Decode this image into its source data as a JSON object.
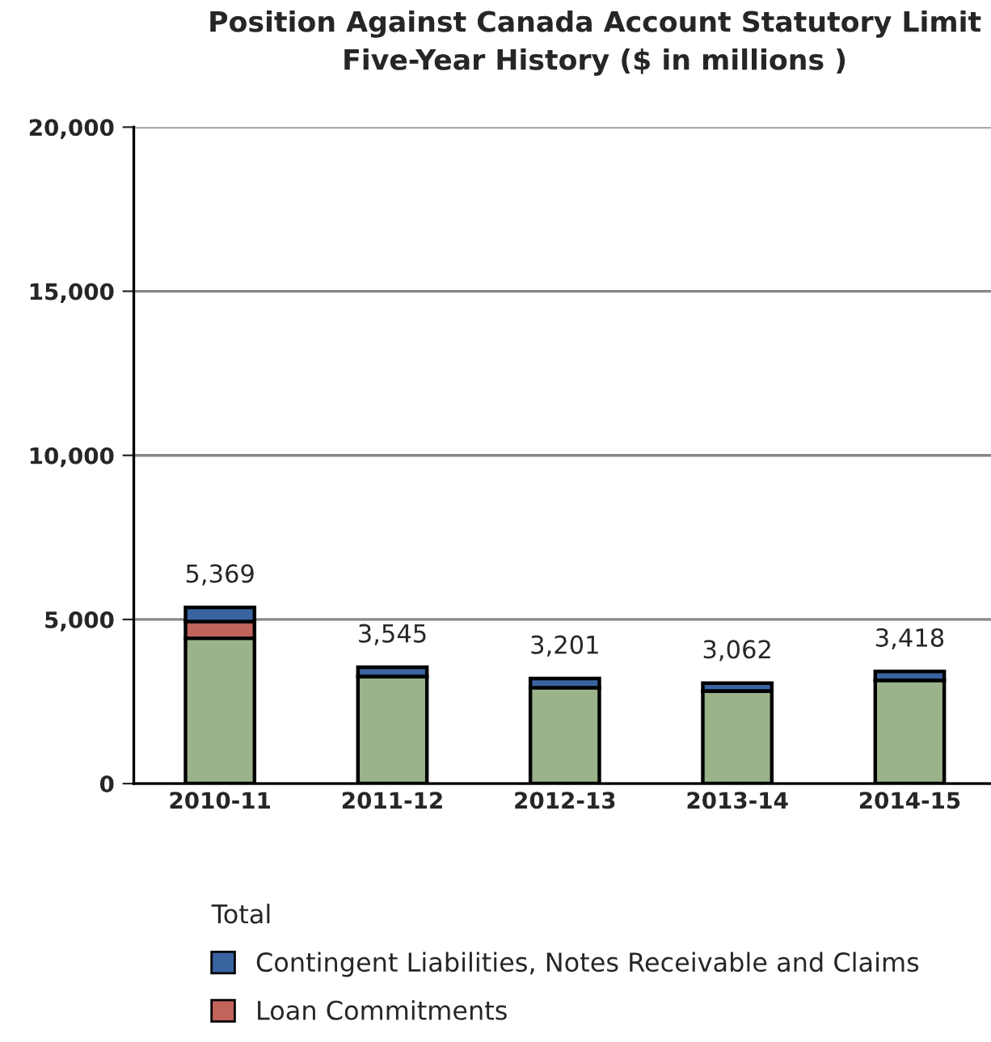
{
  "chart_data": {
    "type": "bar",
    "title": "Position Against Canada Account Statutory Limit\nFive-Year History ($ in millions )",
    "categories": [
      "2010-11",
      "2011-12",
      "2012-13",
      "2013-14",
      "2014-15"
    ],
    "stacked": true,
    "series": [
      {
        "color": "#9bb38b",
        "values": [
          4429,
          3265,
          2921,
          2822,
          3148
        ]
      },
      {
        "name": "Loan Commitments",
        "color": "#c0645c",
        "values": [
          510,
          null,
          null,
          null,
          null
        ]
      },
      {
        "name": "Contingent Liabilities, Notes Receivable and Claims",
        "color": "#3a64a0",
        "values": [
          430,
          280,
          280,
          240,
          270
        ]
      }
    ],
    "totals": [
      "5,369",
      "3,545",
      "3,201",
      "3,062",
      "3,418"
    ],
    "ylim": [
      0,
      20000
    ],
    "yticks": [
      {
        "value": 0,
        "label": "0"
      },
      {
        "value": 5000,
        "label": "5,000"
      },
      {
        "value": 10000,
        "label": "10,000"
      },
      {
        "value": 15000,
        "label": "15,000"
      },
      {
        "value": 20000,
        "label": "20,000"
      }
    ],
    "grid": "y",
    "legend": "bottom",
    "legend_title": "Total"
  }
}
